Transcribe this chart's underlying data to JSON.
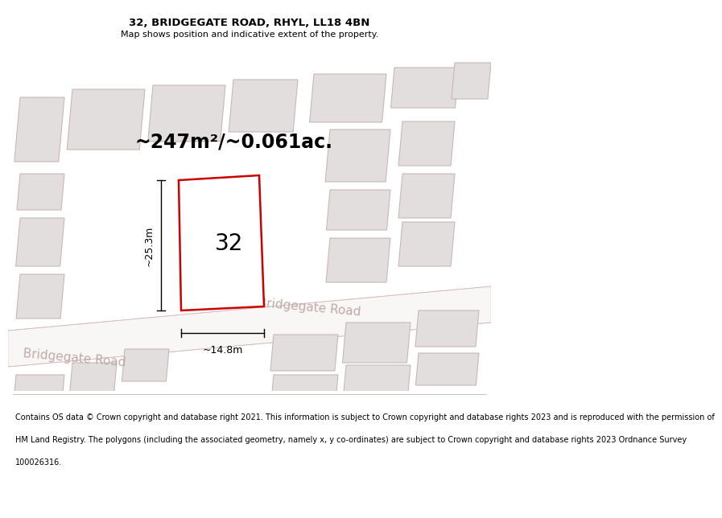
{
  "title": "32, BRIDGEGATE ROAD, RHYL, LL18 4BN",
  "subtitle": "Map shows position and indicative extent of the property.",
  "area_label": "~247m²/~0.061ac.",
  "number_label": "32",
  "dim_height": "~25.3m",
  "dim_width": "~14.8m",
  "road_label_1": "Bridgegate Road",
  "road_label_2": "Bridgegate Road",
  "footer_lines": [
    "Contains OS data © Crown copyright and database right 2021. This information is subject to Crown copyright and database rights 2023 and is reproduced with the permission of",
    "HM Land Registry. The polygons (including the associated geometry, namely x, y co-ordinates) are subject to Crown copyright and database rights 2023 Ordnance Survey",
    "100026316."
  ],
  "map_bg": "#f2efef",
  "road_fill": "#f9f6f6",
  "road_edge": "#ddd0d0",
  "building_fill": "#e3dede",
  "building_stroke": "#c8b8b8",
  "plot_fill": "#ffffff",
  "plot_stroke": "#cc0000",
  "title_fontsize": 9.5,
  "subtitle_fontsize": 8,
  "area_fontsize": 17,
  "number_fontsize": 20,
  "dim_fontsize": 9,
  "road_fontsize": 11,
  "footer_fontsize": 7
}
